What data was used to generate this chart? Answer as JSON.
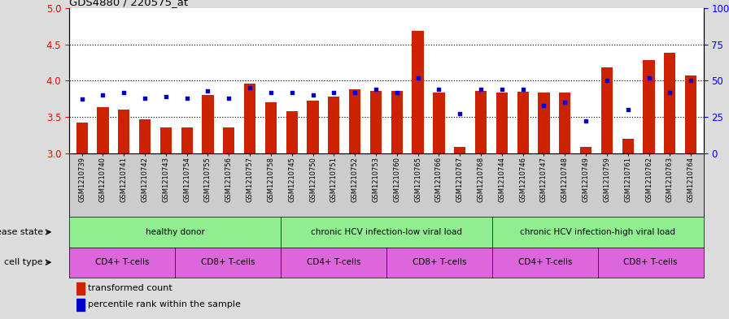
{
  "title": "GDS4880 / 220575_at",
  "samples": [
    "GSM1210739",
    "GSM1210740",
    "GSM1210741",
    "GSM1210742",
    "GSM1210743",
    "GSM1210754",
    "GSM1210755",
    "GSM1210756",
    "GSM1210757",
    "GSM1210758",
    "GSM1210745",
    "GSM1210750",
    "GSM1210751",
    "GSM1210752",
    "GSM1210753",
    "GSM1210760",
    "GSM1210765",
    "GSM1210766",
    "GSM1210767",
    "GSM1210768",
    "GSM1210744",
    "GSM1210746",
    "GSM1210747",
    "GSM1210748",
    "GSM1210749",
    "GSM1210759",
    "GSM1210761",
    "GSM1210762",
    "GSM1210763",
    "GSM1210764"
  ],
  "red_values": [
    3.42,
    3.63,
    3.6,
    3.47,
    3.35,
    3.35,
    3.8,
    3.35,
    3.96,
    3.7,
    3.58,
    3.72,
    3.78,
    3.88,
    3.86,
    3.86,
    4.68,
    3.83,
    3.09,
    3.86,
    3.84,
    3.85,
    3.83,
    3.83,
    3.09,
    4.18,
    3.2,
    4.28,
    4.38,
    4.07
  ],
  "blue_values": [
    37,
    40,
    42,
    38,
    39,
    38,
    43,
    38,
    45,
    42,
    42,
    40,
    42,
    42,
    44,
    42,
    52,
    44,
    27,
    44,
    44,
    44,
    33,
    35,
    22,
    50,
    30,
    52,
    42,
    50
  ],
  "ylim_left": [
    3.0,
    5.0
  ],
  "ylim_right": [
    0,
    100
  ],
  "yticks_left": [
    3.0,
    3.5,
    4.0,
    4.5,
    5.0
  ],
  "yticks_right": [
    0,
    25,
    50,
    75,
    100
  ],
  "grid_values": [
    3.5,
    4.0,
    4.5
  ],
  "disease_groups": [
    {
      "label": "healthy donor",
      "start": 0,
      "end": 10
    },
    {
      "label": "chronic HCV infection-low viral load",
      "start": 10,
      "end": 20
    },
    {
      "label": "chronic HCV infection-high viral load",
      "start": 20,
      "end": 30
    }
  ],
  "cell_type_groups": [
    {
      "label": "CD4+ T-cells",
      "start": 0,
      "end": 5
    },
    {
      "label": "CD8+ T-cells",
      "start": 5,
      "end": 10
    },
    {
      "label": "CD4+ T-cells",
      "start": 10,
      "end": 15
    },
    {
      "label": "CD8+ T-cells",
      "start": 15,
      "end": 20
    },
    {
      "label": "CD4+ T-cells",
      "start": 20,
      "end": 25
    },
    {
      "label": "CD8+ T-cells",
      "start": 25,
      "end": 30
    }
  ],
  "bar_color": "#CC2200",
  "dot_color": "#0000CC",
  "bg_color": "#DCDCDC",
  "plot_bg": "#FFFFFF",
  "xtick_bg": "#CCCCCC",
  "disease_color": "#90EE90",
  "cell_color": "#DD66DD",
  "disease_state_label": "disease state",
  "cell_type_label": "cell type",
  "legend_red": "transformed count",
  "legend_blue": "percentile rank within the sample"
}
